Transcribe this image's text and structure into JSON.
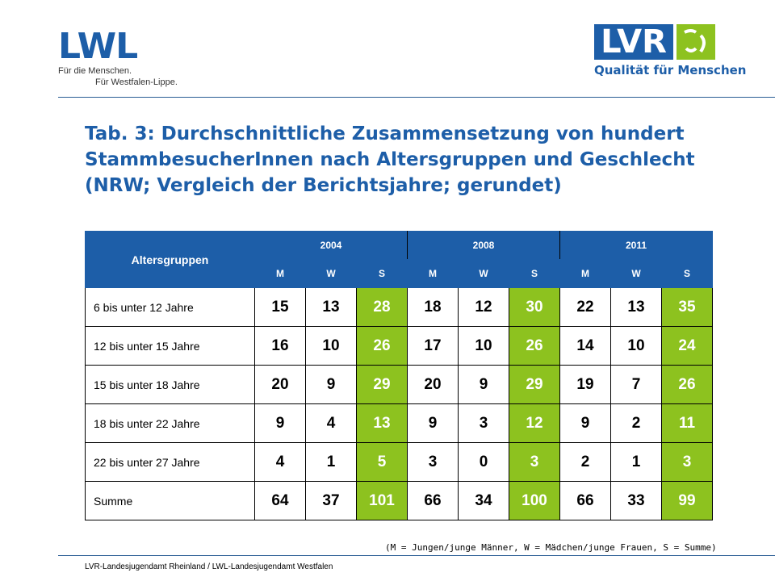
{
  "logos": {
    "lwl": {
      "wordmark": "LWL",
      "tagline1": "Für die Menschen.",
      "tagline2": "Für Westfalen-Lippe."
    },
    "lvr": {
      "wordmark": "LVR",
      "tagline": "Qualität für Menschen"
    }
  },
  "title": "Tab. 3: Durchschnittliche Zusammensetzung von hundert StammbesucherInnen nach Altersgruppen und Geschlecht (NRW; Vergleich der Berichtsjahre; gerundet)",
  "table": {
    "corner_header": "Altersgruppen",
    "years": [
      "2004",
      "2008",
      "2011"
    ],
    "subheaders": [
      "M",
      "W",
      "S"
    ],
    "rows": [
      {
        "label": "6 bis unter 12 Jahre",
        "values": [
          "15",
          "13",
          "28",
          "18",
          "12",
          "30",
          "22",
          "13",
          "35"
        ]
      },
      {
        "label": "12 bis unter 15 Jahre",
        "values": [
          "16",
          "10",
          "26",
          "17",
          "10",
          "26",
          "14",
          "10",
          "24"
        ]
      },
      {
        "label": "15 bis unter 18 Jahre",
        "values": [
          "20",
          "9",
          "29",
          "20",
          "9",
          "29",
          "19",
          "7",
          "26"
        ]
      },
      {
        "label": "18 bis unter 22 Jahre",
        "values": [
          "9",
          "4",
          "13",
          "9",
          "3",
          "12",
          "9",
          "2",
          "11"
        ]
      },
      {
        "label": "22 bis unter 27 Jahre",
        "values": [
          "4",
          "1",
          "5",
          "3",
          "0",
          "3",
          "2",
          "1",
          "3"
        ]
      },
      {
        "label": "Summe",
        "values": [
          "64",
          "37",
          "101",
          "66",
          "34",
          "100",
          "66",
          "33",
          "99"
        ]
      }
    ]
  },
  "note": "(M = Jungen/junge Männer, W = Mädchen/junge Frauen, S = Summe)",
  "footer": "LVR-Landesjugendamt Rheinland / LWL-Landesjugendamt Westfalen",
  "colors": {
    "primary_blue": "#1d5ea8",
    "accent_green": "#8dc21f"
  }
}
